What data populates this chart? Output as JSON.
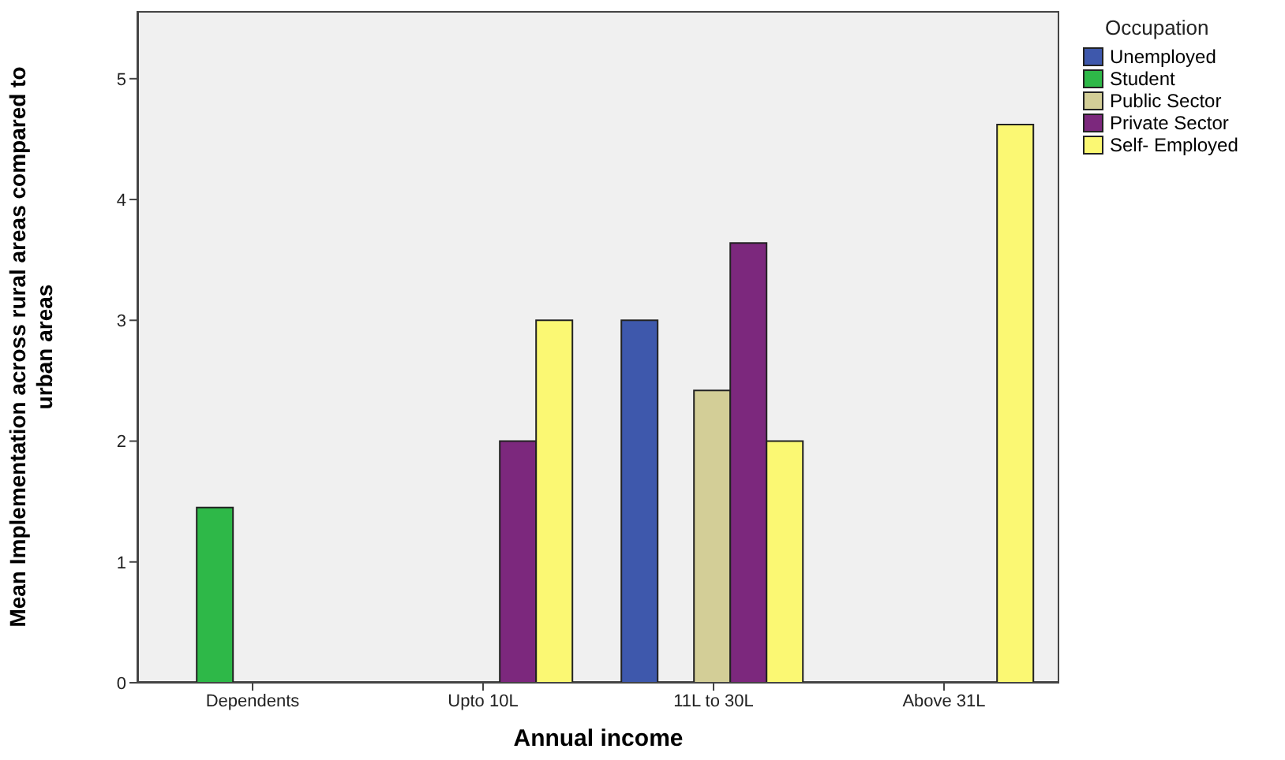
{
  "chart_data": {
    "type": "bar",
    "xlabel": "Annual income",
    "ylabel": "Mean Implementation across rural areas compared to urban areas",
    "legend_title": "Occupation",
    "categories": [
      "Dependents",
      "Upto 10L",
      "11L to 30L",
      "Above 31L"
    ],
    "series": [
      {
        "name": "Unemployed",
        "color": "#3e58ac",
        "values": [
          null,
          null,
          3.0,
          null
        ]
      },
      {
        "name": "Student",
        "color": "#2eb848",
        "values": [
          1.45,
          null,
          null,
          null
        ]
      },
      {
        "name": "Public Sector",
        "color": "#d3ce97",
        "values": [
          null,
          null,
          2.42,
          null
        ]
      },
      {
        "name": "Private Sector",
        "color": "#7c287d",
        "values": [
          null,
          2.0,
          3.64,
          null
        ]
      },
      {
        "name": "Self- Employed",
        "color": "#fbf873",
        "values": [
          null,
          3.0,
          2.0,
          4.62
        ]
      }
    ],
    "ylim": [
      0,
      5.56
    ],
    "yticks": [
      0,
      1,
      2,
      3,
      4,
      5
    ],
    "grid": false,
    "legend": "top right"
  }
}
